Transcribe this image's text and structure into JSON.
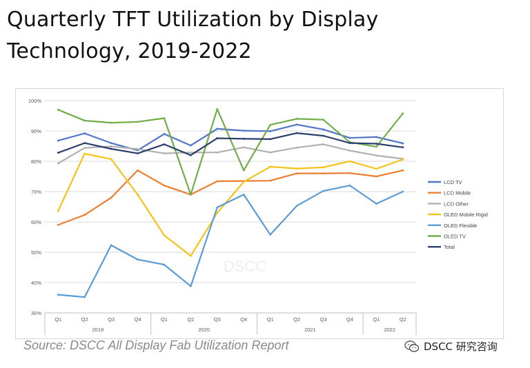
{
  "header": {
    "title": "Quarterly TFT Utilization by Display Technology, 2019-2022"
  },
  "footer": {
    "source": "Source: DSCC All Display Fab Utilization Report",
    "brand_icon": "wechat-icon",
    "brand_text": "DSCC 研究咨询"
  },
  "chart_data": {
    "type": "line",
    "title": "",
    "watermark": "DSCC",
    "categories": [
      "Q1",
      "Q2",
      "Q3",
      "Q4",
      "Q1",
      "Q2",
      "Q3",
      "Q4",
      "Q1",
      "Q2",
      "Q3",
      "Q4",
      "Q1",
      "Q2"
    ],
    "year_groups": [
      {
        "label": "2019",
        "count": 4
      },
      {
        "label": "2020",
        "count": 4
      },
      {
        "label": "2021",
        "count": 4
      },
      {
        "label": "2022",
        "count": 2
      }
    ],
    "ylim": [
      30,
      100
    ],
    "yticks": [
      "30%",
      "40%",
      "50%",
      "60%",
      "70%",
      "80%",
      "90%",
      "100%"
    ],
    "ytick_values": [
      30,
      40,
      50,
      60,
      70,
      80,
      90,
      100
    ],
    "grid": true,
    "legend_position": "right",
    "series": [
      {
        "name": "LCD TV",
        "color": "#4f74c8",
        "values": [
          86.8,
          89.2,
          86,
          83.6,
          89,
          85.2,
          90.7,
          90.1,
          89.9,
          92.1,
          90.5,
          87.7,
          88,
          85.9
        ]
      },
      {
        "name": "LCD Mobile",
        "color": "#ed7d31",
        "values": [
          59,
          62.3,
          68,
          77,
          72,
          69,
          73.4,
          73.5,
          73.6,
          76,
          76,
          76.1,
          75,
          77
        ]
      },
      {
        "name": "LCD Other",
        "color": "#b0b0b0",
        "values": [
          79.3,
          84.4,
          84.9,
          84,
          82.6,
          82.9,
          82.9,
          84.6,
          82.9,
          84.5,
          85.6,
          83.5,
          81.9,
          80.8
        ]
      },
      {
        "name": "OLED Mobile Rigid",
        "color": "#f5c218",
        "values": [
          63.6,
          82.5,
          80.7,
          69,
          55.6,
          48.8,
          63,
          73.2,
          78.2,
          77.6,
          78,
          80,
          77.5,
          80.6
        ]
      },
      {
        "name": "OLED Flexible",
        "color": "#5b9bd5",
        "values": [
          36,
          35.2,
          52.3,
          47.6,
          45.9,
          38.8,
          64.8,
          69,
          55.8,
          65.3,
          70.2,
          72,
          66,
          70
        ]
      },
      {
        "name": "OLED TV",
        "color": "#70ad47",
        "values": [
          97,
          93.4,
          92.7,
          93,
          94.2,
          69,
          97.2,
          77,
          92,
          94,
          93.7,
          86.3,
          84.8,
          95.8
        ]
      },
      {
        "name": "Total",
        "color": "#2b3f6c",
        "values": [
          82.8,
          86,
          84.1,
          82.6,
          85.6,
          82,
          87.6,
          87.4,
          87.3,
          89.3,
          88.4,
          86,
          85.8,
          84.6
        ]
      }
    ]
  }
}
